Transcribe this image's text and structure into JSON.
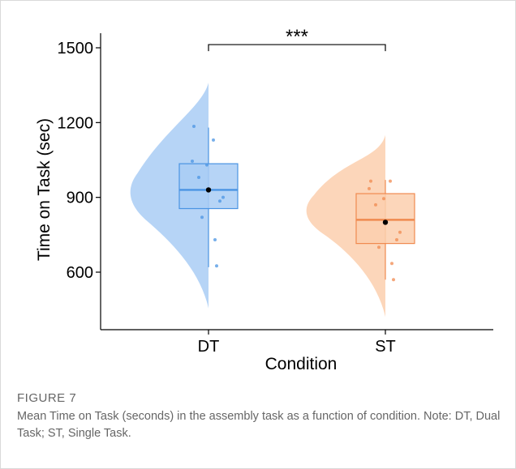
{
  "chart_data": {
    "type": "violin-box",
    "title": "",
    "xlabel": "Condition",
    "ylabel": "Time on Task (sec)",
    "categories": [
      "DT",
      "ST"
    ],
    "ylim": [
      390,
      1550
    ],
    "yticks": [
      600,
      900,
      1200,
      1500
    ],
    "grid": false,
    "groups": [
      {
        "name": "DT",
        "color": "#a9ccf4",
        "line_color": "#4a94e3",
        "median": 930,
        "mean": 930,
        "q1": 855,
        "q3": 1035,
        "whisker_low": 620,
        "whisker_high": 1180,
        "violin_range": [
          455,
          1360
        ],
        "points": [
          1185,
          1130,
          1045,
          1030,
          980,
          900,
          885,
          820,
          730,
          625
        ]
      },
      {
        "name": "ST",
        "color": "#fbcfae",
        "line_color": "#f08a4f",
        "median": 810,
        "mean": 800,
        "q1": 715,
        "q3": 915,
        "whisker_low": 570,
        "whisker_high": 970,
        "violin_range": [
          420,
          1150
        ],
        "points": [
          965,
          965,
          935,
          895,
          870,
          760,
          730,
          700,
          635,
          570
        ]
      }
    ],
    "annotation": {
      "text": "***",
      "between": [
        "DT",
        "ST"
      ],
      "y": 1490
    }
  },
  "caption": {
    "label": "FIGURE 7",
    "text": "Mean Time on Task (seconds) in the assembly task as a function of condition. Note: DT, Dual Task; ST, Single Task."
  }
}
